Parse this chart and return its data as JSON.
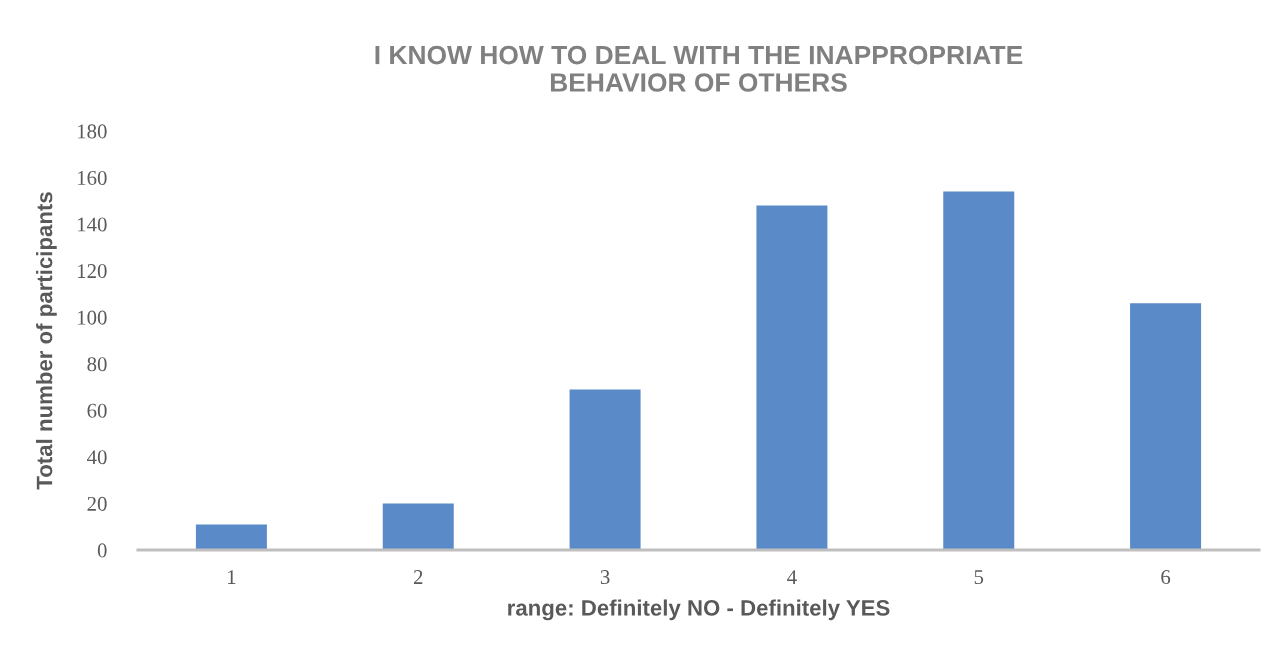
{
  "chart_data": {
    "type": "bar",
    "title": "I KNOW HOW TO DEAL WITH THE INAPPROPRIATE\nBEHAVIOR OF OTHERS",
    "xlabel": "range: Definitely NO - Definitely YES",
    "ylabel": "Total number of participants",
    "categories": [
      "1",
      "2",
      "3",
      "4",
      "5",
      "6"
    ],
    "values": [
      11,
      20,
      69,
      148,
      154,
      106
    ],
    "color": "#5b8ac9",
    "ylim": [
      0,
      180
    ],
    "yticks": [
      0,
      20,
      40,
      60,
      80,
      100,
      120,
      140,
      160,
      180
    ]
  }
}
